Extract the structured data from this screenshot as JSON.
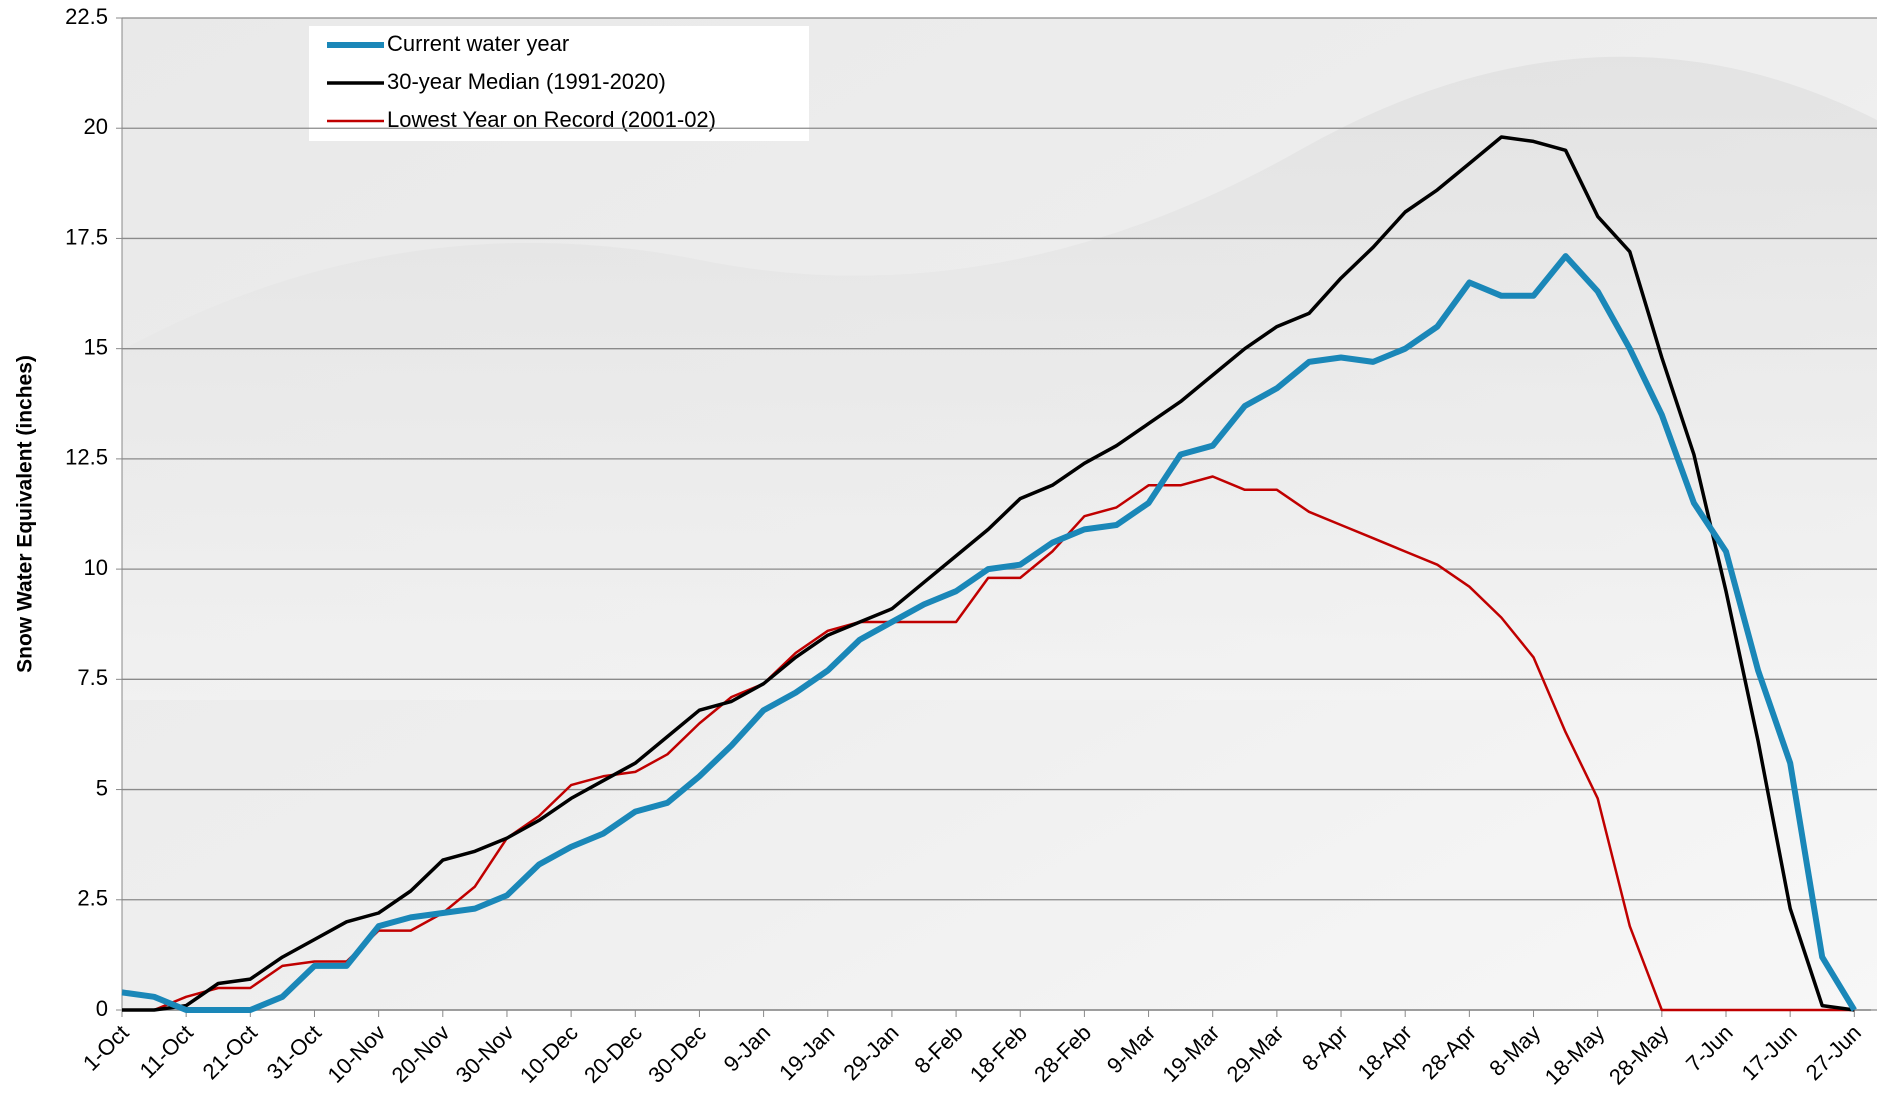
{
  "chart_data": {
    "type": "line",
    "y_label": "Snow Water Equivalent (inches)",
    "categories": [
      "1-Oct",
      null,
      "11-Oct",
      null,
      "21-Oct",
      null,
      "31-Oct",
      null,
      "10-Nov",
      null,
      "20-Nov",
      null,
      "30-Nov",
      null,
      "10-Dec",
      null,
      "20-Dec",
      null,
      "30-Dec",
      null,
      "9-Jan",
      null,
      "19-Jan",
      null,
      "29-Jan",
      null,
      "8-Feb",
      null,
      "18-Feb",
      null,
      "28-Feb",
      null,
      "9-Mar",
      null,
      "19-Mar",
      null,
      "29-Mar",
      null,
      "8-Apr",
      null,
      "18-Apr",
      null,
      "28-Apr",
      null,
      "8-May",
      null,
      "18-May",
      null,
      "28-May",
      null,
      "7-Jun",
      null,
      "17-Jun",
      null,
      "27-Jun"
    ],
    "series": [
      {
        "name": "Current water year",
        "color": "#1a87b8",
        "width": 6,
        "values": [
          0.4,
          0.3,
          0,
          0,
          0,
          0.3,
          1.0,
          1.0,
          1.9,
          2.1,
          2.2,
          2.3,
          2.6,
          3.3,
          3.7,
          4.0,
          4.5,
          4.7,
          5.3,
          6.0,
          6.8,
          7.2,
          7.7,
          8.4,
          8.8,
          9.2,
          9.5,
          10.0,
          10.1,
          10.6,
          10.9,
          11.0,
          11.5,
          12.6,
          12.8,
          13.7,
          14.1,
          14.7,
          14.8,
          14.7,
          15.0,
          15.5,
          16.5,
          16.2,
          16.2,
          17.1,
          16.3,
          15.0,
          13.5,
          11.5,
          10.4,
          7.7,
          5.6,
          1.2,
          0
        ]
      },
      {
        "name": "30-year Median (1991-2020)",
        "color": "#000000",
        "width": 3.5,
        "values": [
          0,
          0,
          0.1,
          0.6,
          0.7,
          1.2,
          1.6,
          2.0,
          2.2,
          2.7,
          3.4,
          3.6,
          3.9,
          4.3,
          4.8,
          5.2,
          5.6,
          6.2,
          6.8,
          7.0,
          7.4,
          8.0,
          8.5,
          8.8,
          9.1,
          9.7,
          10.3,
          10.9,
          11.6,
          11.9,
          12.4,
          12.8,
          13.3,
          13.8,
          14.4,
          15.0,
          15.5,
          15.8,
          16.6,
          17.3,
          18.1,
          18.6,
          19.2,
          19.8,
          19.7,
          19.5,
          18.0,
          17.2,
          14.8,
          12.6,
          9.5,
          6.1,
          2.3,
          0.1,
          0
        ]
      },
      {
        "name": "Lowest Year on Record (2001-02)",
        "color": "#c00000",
        "width": 2.5,
        "values": [
          0,
          0,
          0.3,
          0.5,
          0.5,
          1.0,
          1.1,
          1.1,
          1.8,
          1.8,
          2.2,
          2.8,
          3.9,
          4.4,
          5.1,
          5.3,
          5.4,
          5.8,
          6.5,
          7.1,
          7.4,
          8.1,
          8.6,
          8.8,
          8.8,
          8.8,
          8.8,
          9.8,
          9.8,
          10.4,
          11.2,
          11.4,
          11.9,
          11.9,
          12.1,
          11.8,
          11.8,
          11.3,
          11.0,
          10.7,
          10.4,
          10.1,
          9.6,
          8.9,
          8.0,
          6.3,
          4.8,
          1.9,
          0,
          0,
          0,
          0,
          0,
          0,
          0
        ]
      }
    ],
    "ylim": [
      0,
      22.5
    ],
    "yticks": [
      0,
      2.5,
      5,
      7.5,
      10,
      12.5,
      15,
      17.5,
      20,
      22.5
    ],
    "grid": true,
    "legend": "top-left"
  }
}
